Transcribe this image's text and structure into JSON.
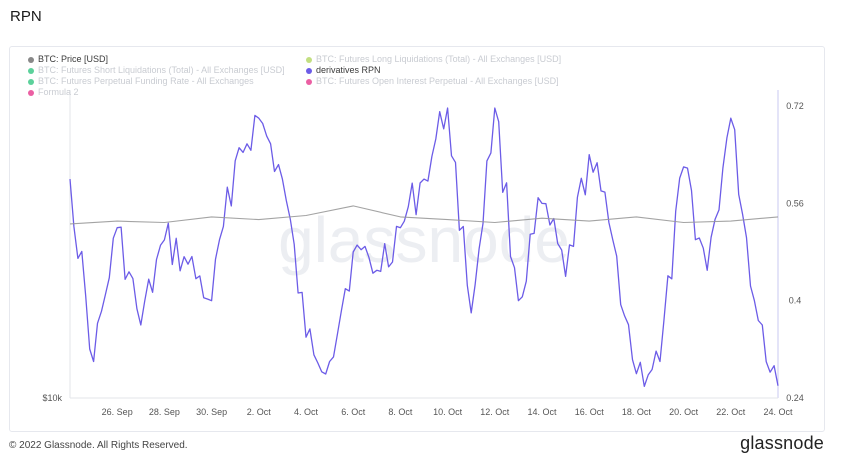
{
  "page": {
    "title": "RPN"
  },
  "legend": [
    {
      "label": "BTC: Price [USD]",
      "color": "#888888",
      "state": "active"
    },
    {
      "label": "BTC: Futures Long Liquidations (Total) - All Exchanges [USD]",
      "color": "#b7d96b",
      "state": "muted"
    },
    {
      "label": "BTC: Futures Short Liquidations (Total) - All Exchanges [USD]",
      "color": "#3fc98a",
      "state": "muted"
    },
    {
      "label": "derivatives RPN",
      "color": "#6c5ce7",
      "state": "active"
    },
    {
      "label": "BTC: Futures Perpetual Funding Rate - All Exchanges",
      "color": "#3fc98a",
      "state": "muted"
    },
    {
      "label": "BTC: Futures Open Interest Perpetual - All Exchanges [USD]",
      "color": "#e84393",
      "state": "muted"
    },
    {
      "label": "Formula 2",
      "color": "#e84393",
      "state": "muted"
    }
  ],
  "watermark": "glassnode",
  "footer": {
    "copyright": "© 2022 Glassnode. All Rights Reserved.",
    "brand": "glassnode"
  },
  "chart_data": {
    "type": "line",
    "x_tick_labels": [
      "26. Sep",
      "28. Sep",
      "30. Sep",
      "2. Oct",
      "4. Oct",
      "6. Oct",
      "8. Oct",
      "10. Oct",
      "12. Oct",
      "14. Oct",
      "16. Oct",
      "18. Oct",
      "20. Oct",
      "22. Oct",
      "24. Oct"
    ],
    "x_range": [
      "2022-09-24",
      "2022-10-24"
    ],
    "left_axis": {
      "tick_labels": [
        "$10k"
      ],
      "scale": "log"
    },
    "right_axis": {
      "ticks": [
        0.24,
        0.4,
        0.56,
        0.72
      ],
      "ylim": [
        0.24,
        0.73
      ]
    },
    "series": [
      {
        "name": "derivatives RPN",
        "axis": "right",
        "color": "#6c5ce7",
        "dates": [
          "2022-09-24",
          "2022-09-25",
          "2022-09-26",
          "2022-09-27",
          "2022-09-28",
          "2022-09-29",
          "2022-09-30",
          "2022-10-01",
          "2022-10-02",
          "2022-10-03",
          "2022-10-04",
          "2022-10-05",
          "2022-10-06",
          "2022-10-07",
          "2022-10-08",
          "2022-10-09",
          "2022-10-10",
          "2022-10-11",
          "2022-10-12",
          "2022-10-13",
          "2022-10-14",
          "2022-10-15",
          "2022-10-16",
          "2022-10-17",
          "2022-10-18",
          "2022-10-19",
          "2022-10-20",
          "2022-10-21",
          "2022-10-22",
          "2022-10-23",
          "2022-10-24"
        ],
        "values": [
          0.6,
          0.3,
          0.52,
          0.36,
          0.5,
          0.46,
          0.4,
          0.63,
          0.7,
          0.6,
          0.34,
          0.3,
          0.48,
          0.45,
          0.52,
          0.6,
          0.72,
          0.38,
          0.72,
          0.4,
          0.56,
          0.44,
          0.64,
          0.5,
          0.28,
          0.3,
          0.62,
          0.45,
          0.7,
          0.4,
          0.26
        ]
      },
      {
        "name": "BTC: Price [USD]",
        "axis": "left",
        "color": "#999999",
        "dates": [
          "2022-09-24",
          "2022-09-26",
          "2022-09-28",
          "2022-09-30",
          "2022-10-02",
          "2022-10-04",
          "2022-10-06",
          "2022-10-08",
          "2022-10-10",
          "2022-10-12",
          "2022-10-14",
          "2022-10-16",
          "2022-10-18",
          "2022-10-20",
          "2022-10-22",
          "2022-10-24"
        ],
        "values": [
          19000,
          19200,
          19100,
          19500,
          19300,
          19600,
          20300,
          19500,
          19300,
          19100,
          19400,
          19200,
          19500,
          19100,
          19200,
          19500
        ]
      }
    ]
  }
}
